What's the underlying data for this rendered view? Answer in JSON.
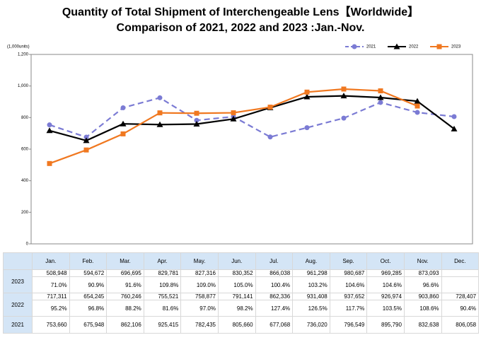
{
  "chart_data": {
    "type": "line",
    "title": "Quantity of Total Shipment of Interchengeable Lens【Worldwide】",
    "subtitle": "Comparison of 2021, 2022 and 2023 :Jan.-Nov.",
    "y_unit": "(1,000units)",
    "categories": [
      "Jan.",
      "Feb.",
      "Mar.",
      "Apr.",
      "May.",
      "Jun.",
      "Jul.",
      "Aug.",
      "Sep.",
      "Oct.",
      "Nov.",
      "Dec."
    ],
    "ylim": [
      0,
      1200
    ],
    "yticks": [
      0,
      200,
      400,
      600,
      800,
      {
        "value": 1000,
        "label": "1,000"
      },
      {
        "value": 1200,
        "label": "1,200"
      }
    ],
    "grid": false,
    "legend": "top-right",
    "series": [
      {
        "name": "2021",
        "color": "#7b7bd4",
        "marker": "circle",
        "dash": true,
        "values": [
          753.66,
          675.948,
          862.106,
          925.415,
          782.435,
          805.66,
          677.068,
          736.02,
          796.549,
          895.79,
          832.638,
          806.058
        ],
        "value_labels": [
          "753,660",
          "675,948",
          "862,106",
          "925,415",
          "782,435",
          "805,660",
          "677,068",
          "736,020",
          "796,549",
          "895,790",
          "832,638",
          "806,058"
        ]
      },
      {
        "name": "2022",
        "color": "#000000",
        "marker": "triangle",
        "dash": false,
        "values": [
          717.311,
          654.245,
          760.246,
          755.521,
          758.877,
          791.141,
          862.336,
          931.408,
          937.652,
          926.974,
          903.86,
          728.407
        ],
        "value_labels": [
          "717,311",
          "654,245",
          "760,246",
          "755,521",
          "758,877",
          "791,141",
          "862,336",
          "931,408",
          "937,652",
          "926,974",
          "903,860",
          "728,407"
        ],
        "yoy_labels": [
          "95.2%",
          "96.8%",
          "88.2%",
          "81.6%",
          "97.0%",
          "98.2%",
          "127.4%",
          "126.5%",
          "117.7%",
          "103.5%",
          "108.6%",
          "90.4%"
        ]
      },
      {
        "name": "2023",
        "color": "#f07820",
        "marker": "square",
        "dash": false,
        "values": [
          508.948,
          594.672,
          696.695,
          829.781,
          827.316,
          830.352,
          866.038,
          961.298,
          980.687,
          969.285,
          873.093,
          null
        ],
        "value_labels": [
          "508,948",
          "594,672",
          "696,695",
          "829,781",
          "827,316",
          "830,352",
          "866,038",
          "961,298",
          "980,687",
          "969,285",
          "873,093",
          null
        ],
        "yoy_labels": [
          "71.0%",
          "90.9%",
          "91.6%",
          "109.8%",
          "109.0%",
          "105.0%",
          "100.4%",
          "103.2%",
          "104.6%",
          "104.6%",
          "96.6%",
          null
        ]
      }
    ]
  }
}
